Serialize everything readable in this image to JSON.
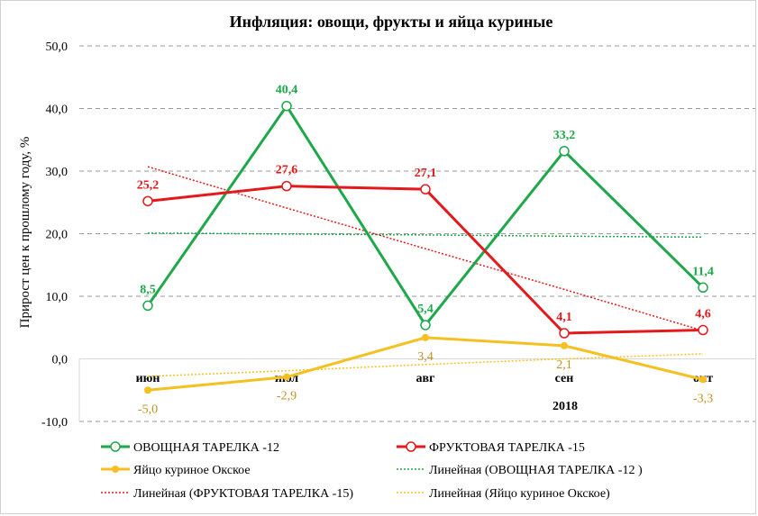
{
  "chart_data": {
    "type": "line",
    "title": "Инфляция: овощи, фрукты и яйца куриные",
    "ylabel": "Прирост цен к прошлому году, %",
    "xlabel": "2018",
    "categories": [
      "июн",
      "июл",
      "авг",
      "сен",
      "окт"
    ],
    "ylim": [
      -10,
      50
    ],
    "yticks": [
      "-10,0",
      "0,0",
      "10,0",
      "20,0",
      "30,0",
      "40,0",
      "50,0"
    ],
    "grid": true,
    "legend_position": "bottom",
    "series": [
      {
        "name": "ОВОЩНАЯ ТАРЕЛКА -12",
        "values": [
          8.5,
          40.4,
          5.4,
          33.2,
          11.4
        ],
        "labels": [
          "8,5",
          "40,4",
          "5,4",
          "33,2",
          "11,4"
        ],
        "color": "#1ea84a",
        "marker": "open-circle"
      },
      {
        "name": "ФРУКТОВАЯ ТАРЕЛКА -15",
        "values": [
          25.2,
          27.6,
          27.1,
          4.1,
          4.6
        ],
        "labels": [
          "25,2",
          "27,6",
          "27,1",
          "4,1",
          "4,6"
        ],
        "color": "#e3191c",
        "marker": "open-circle"
      },
      {
        "name": "Яйцо куриное Окское",
        "values": [
          -5.0,
          -2.9,
          3.4,
          2.1,
          -3.3
        ],
        "labels": [
          "-5,0",
          "-2,9",
          "3,4",
          "2,1",
          "-3,3"
        ],
        "color": "#f5c020",
        "label_color": "#c09020",
        "marker": "filled-circle"
      }
    ],
    "trendlines": [
      {
        "name": "Линейная (ОВОЩНАЯ ТАРЕЛКА -12 )",
        "values": [
          20.1,
          19.95,
          19.8,
          19.6,
          19.45
        ],
        "color": "#1ea84a"
      },
      {
        "name": "Линейная (ФРУКТОВАЯ ТАРЕЛКА -15)",
        "values": [
          30.7,
          24.1,
          17.6,
          11.1,
          4.5
        ],
        "color": "#e3191c"
      },
      {
        "name": "Линейная (Яйцо куриное Окское)",
        "values": [
          -2.8,
          -1.9,
          -0.9,
          0.0,
          0.8
        ],
        "color": "#f5c020"
      }
    ]
  }
}
